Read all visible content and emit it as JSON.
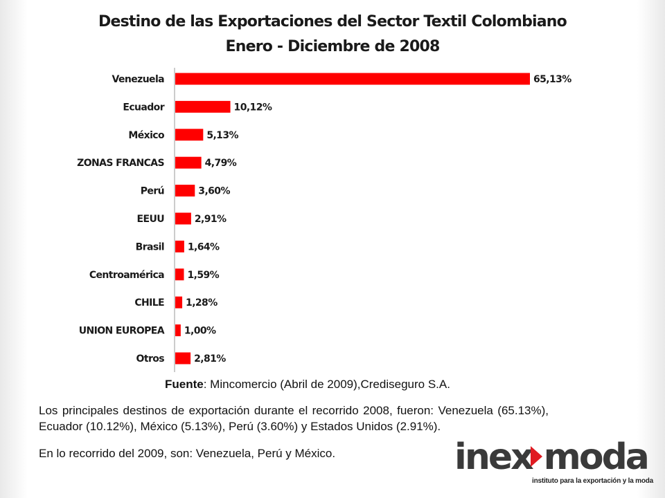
{
  "title_line1": "Destino de las Exportaciones del Sector Textil Colombiano",
  "title_line2": "Enero - Diciembre de 2008",
  "chart_data": {
    "type": "bar",
    "orientation": "horizontal",
    "categories": [
      "Venezuela",
      "Ecuador",
      "México",
      "ZONAS FRANCAS",
      "Perú",
      "EEUU",
      "Brasil",
      "Centroamérica",
      "CHILE",
      "UNION EUROPEA",
      "Otros"
    ],
    "values": [
      65.13,
      10.12,
      5.13,
      4.79,
      3.6,
      2.91,
      1.64,
      1.59,
      1.28,
      1.0,
      2.81
    ],
    "data_labels": [
      "65,13%",
      "10,12%",
      "5,13%",
      "4,79%",
      "3,60%",
      "2,91%",
      "1,64%",
      "1,59%",
      "1,28%",
      "1,00%",
      "2,81%"
    ],
    "bar_color": "#ff0000",
    "grid": false,
    "legend": "none"
  },
  "source": {
    "label": "Fuente",
    "text": ": Mincomercio (Abril de 2009),Crediseguro S.A."
  },
  "paragraph1": "Los principales destinos de exportación durante el recorrido 2008, fueron: Venezuela (65.13%), Ecuador (10.12%), México (5.13%), Perú (3.60%) y Estados Unidos (2.91%).",
  "paragraph2": "En lo recorrido del 2009, son: Venezuela, Perú y México.",
  "logo": {
    "word_part1": "inex",
    "word_part2": "moda",
    "tagline": "instituto para la exportación y la moda",
    "arrow_color": "#e01b22"
  }
}
